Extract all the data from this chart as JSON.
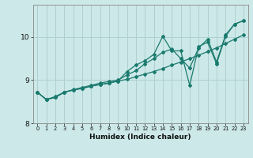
{
  "xlabel": "Humidex (Indice chaleur)",
  "bg_color": "#cce8e8",
  "grid_color": "#b0d0d0",
  "line_color": "#1a7a6e",
  "xlim": [
    -0.5,
    23.5
  ],
  "ylim": [
    8.35,
    10.75
  ],
  "xticks": [
    0,
    1,
    2,
    3,
    4,
    5,
    6,
    7,
    8,
    9,
    10,
    11,
    12,
    13,
    14,
    15,
    16,
    17,
    18,
    19,
    20,
    21,
    22,
    23
  ],
  "yticks": [
    8,
    9,
    10
  ],
  "series1_x": [
    0,
    1,
    2,
    3,
    4,
    5,
    6,
    7,
    8,
    9,
    10,
    11,
    12,
    13,
    14,
    15,
    16,
    17,
    18,
    19,
    20,
    21,
    22,
    23
  ],
  "series1_y": [
    8.72,
    8.55,
    8.6,
    8.72,
    8.77,
    8.81,
    8.86,
    8.9,
    8.93,
    8.98,
    9.02,
    9.08,
    9.14,
    9.2,
    9.27,
    9.35,
    9.42,
    9.5,
    9.58,
    9.66,
    9.75,
    9.85,
    9.95,
    10.05
  ],
  "series2_x": [
    0,
    1,
    2,
    3,
    4,
    5,
    6,
    7,
    8,
    9,
    10,
    11,
    12,
    13,
    14,
    15,
    16,
    17,
    18,
    19,
    20,
    21,
    22,
    23
  ],
  "series2_y": [
    8.72,
    8.55,
    8.62,
    8.72,
    8.78,
    8.83,
    8.88,
    8.93,
    8.97,
    9.0,
    9.12,
    9.22,
    9.38,
    9.5,
    9.65,
    9.72,
    9.5,
    9.28,
    9.75,
    9.95,
    9.42,
    10.05,
    10.3,
    10.38
  ],
  "series3_x": [
    0,
    1,
    2,
    3,
    4,
    5,
    6,
    7,
    8,
    9,
    10,
    11,
    12,
    13,
    14,
    15,
    16,
    17,
    18,
    19,
    20,
    21,
    22,
    23
  ],
  "series3_y": [
    8.72,
    8.55,
    8.6,
    8.72,
    8.77,
    8.81,
    8.86,
    8.9,
    8.93,
    8.98,
    9.2,
    9.35,
    9.45,
    9.6,
    10.02,
    9.68,
    9.68,
    8.88,
    9.78,
    9.88,
    9.38,
    10.02,
    10.3,
    10.38
  ]
}
